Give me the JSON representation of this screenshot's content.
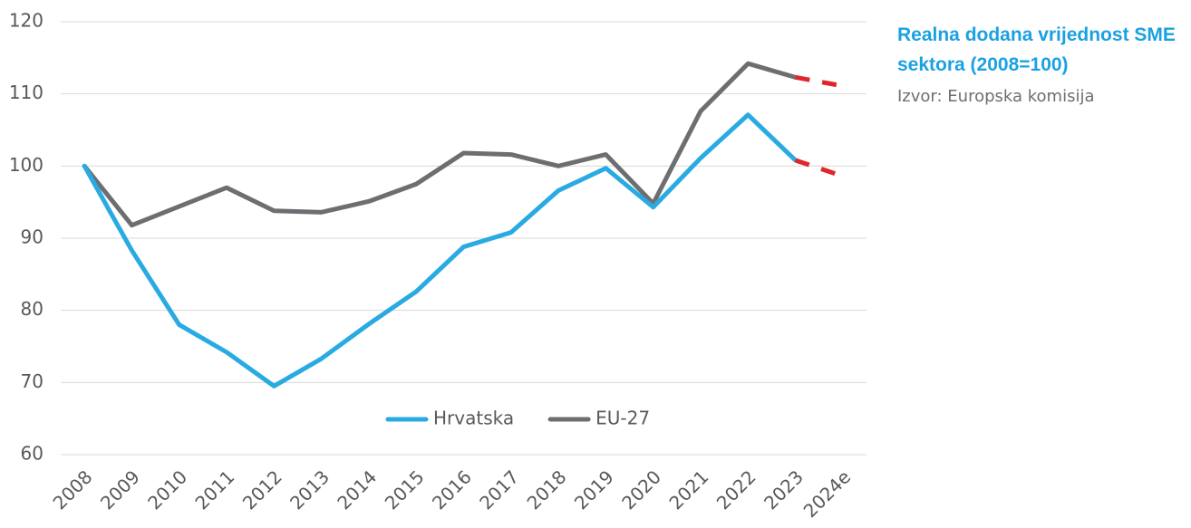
{
  "chart_data": {
    "type": "line",
    "title": "Realna dodana vrijednost SME sektora (2008=100)",
    "subtitle": "Izvor: Europska komisija",
    "categories": [
      "2008",
      "2009",
      "2010",
      "2011",
      "2012",
      "2013",
      "2014",
      "2015",
      "2016",
      "2017",
      "2018",
      "2019",
      "2020",
      "2021",
      "2022",
      "2023",
      "2024e"
    ],
    "series": [
      {
        "name": "Hrvatska",
        "color": "#29abe2",
        "values": [
          100,
          88.3,
          78,
          74.2,
          69.5,
          73.3,
          78.1,
          82.6,
          88.8,
          90.8,
          96.6,
          99.7,
          94.3,
          101.1,
          107.1,
          100.8,
          98.6
        ]
      },
      {
        "name": "EU-27",
        "color": "#6d6e71",
        "values": [
          100,
          91.8,
          94.4,
          97,
          93.8,
          93.6,
          95.1,
          97.5,
          101.8,
          101.6,
          100,
          101.6,
          94.8,
          107.6,
          114.2,
          112.3,
          111.1
        ]
      }
    ],
    "forecast_from_category": "2023",
    "forecast_color": "#e0252b",
    "ylim": [
      60,
      120
    ],
    "yticks": [
      60,
      70,
      80,
      90,
      100,
      110,
      120
    ],
    "grid": true,
    "legend": "bottom"
  }
}
